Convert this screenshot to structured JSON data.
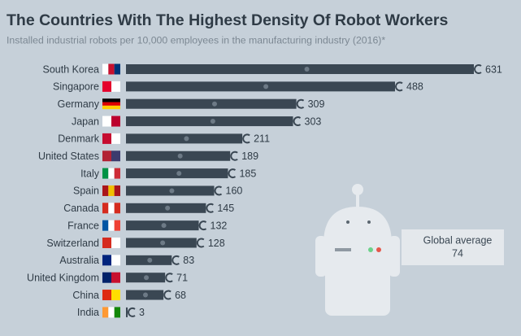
{
  "chart_data": {
    "type": "bar",
    "orientation": "horizontal",
    "title": "The Countries With The Highest Density Of Robot Workers",
    "subtitle": "Installed industrial robots per 10,000 employees in the manufacturing industry (2016)*",
    "categories": [
      "South Korea",
      "Singapore",
      "Germany",
      "Japan",
      "Denmark",
      "United States",
      "Italy",
      "Spain",
      "Canada",
      "France",
      "Switzerland",
      "Australia",
      "United Kingdom",
      "China",
      "India"
    ],
    "values": [
      631,
      488,
      309,
      303,
      211,
      189,
      185,
      160,
      145,
      132,
      128,
      83,
      71,
      68,
      3
    ],
    "color": "#3a4753",
    "annotation": {
      "label": "Global average",
      "value": 74
    }
  }
}
